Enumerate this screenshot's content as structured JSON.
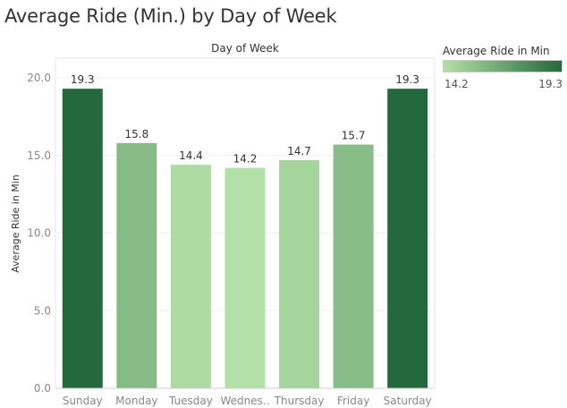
{
  "chart_data": {
    "type": "bar",
    "title": "Average Ride (Min.) by Day of Week",
    "header": "Day of Week",
    "ylabel": "Average Ride in Min",
    "categories": [
      "Sunday",
      "Monday",
      "Tuesday",
      "Wednes..",
      "Thursday",
      "Friday",
      "Saturday"
    ],
    "values": [
      19.3,
      15.8,
      14.4,
      14.2,
      14.7,
      15.7,
      19.3
    ],
    "value_labels": [
      "19.3",
      "15.8",
      "14.4",
      "14.2",
      "14.7",
      "15.7",
      "19.3"
    ],
    "ylim": [
      0,
      20
    ],
    "yticks": [
      "0.0",
      "5.0",
      "10.0",
      "15.0",
      "20.0"
    ],
    "grid": true,
    "legend": {
      "title": "Average Ride in Min",
      "min_label": "14.2",
      "max_label": "19.3",
      "placement": "top-right"
    },
    "color_scale": {
      "min": 14.2,
      "max": 19.3,
      "low_color": "#b3e0a6",
      "high_color": "#24693d"
    }
  }
}
